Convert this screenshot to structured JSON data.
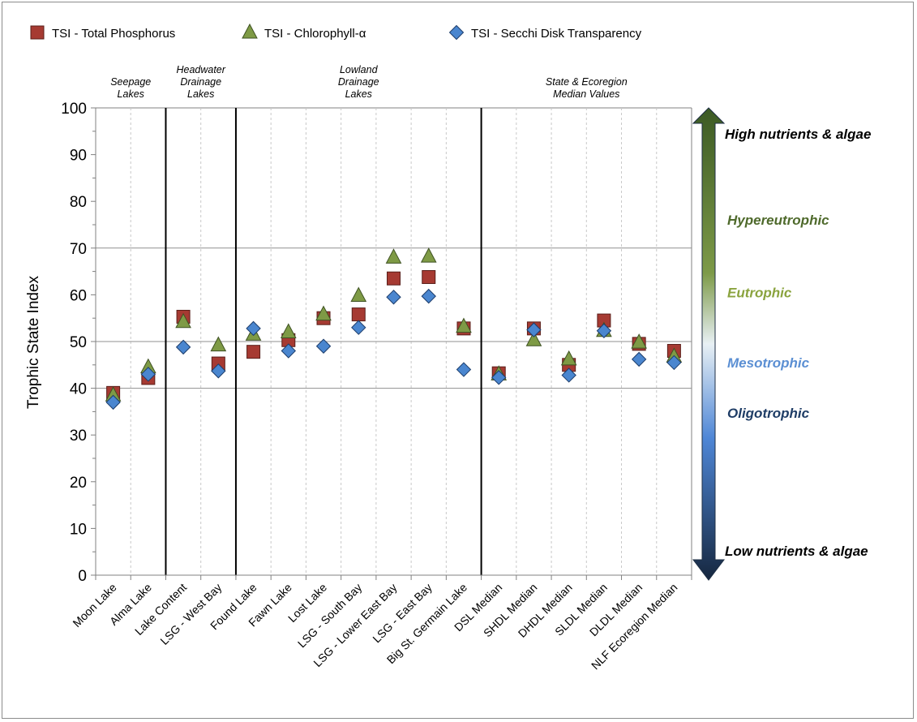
{
  "chart_data": {
    "type": "scatter",
    "ylabel": "Trophic State Index",
    "ylim": [
      0,
      100
    ],
    "yticks": [
      "0",
      "10",
      "20",
      "30",
      "40",
      "50",
      "60",
      "70",
      "80",
      "90",
      "100"
    ],
    "grid": "horizontal lines at 40, 50 and 70",
    "legend_position": "top-left",
    "categories": [
      "Moon Lake",
      "Alma Lake",
      "Lake Content",
      "LSG - West Bay",
      "Found Lake",
      "Fawn Lake",
      "Lost Lake",
      "LSG - South Bay",
      "LSG - Lower East Bay",
      "LSG - East Bay",
      "Big St. Germain Lake",
      "DSL Median",
      "SHDL Median",
      "DHDL Median",
      "SLDL Median",
      "DLDL Median",
      "NLF Ecoregion Median"
    ],
    "series": [
      {
        "name": "TSI - Total Phosphorus",
        "marker": "square",
        "color": "#a63a32",
        "values": [
          39,
          42.2,
          55.3,
          45.3,
          47.8,
          50.3,
          55.0,
          55.8,
          63.5,
          63.8,
          52.8,
          43.2,
          52.8,
          45.0,
          54.5,
          49.5,
          48.0
        ]
      },
      {
        "name": "TSI - Chlorophyll-α",
        "marker": "triangle",
        "color": "#7e9a45",
        "values": [
          38.5,
          44.5,
          54.2,
          49.2,
          51.5,
          52.0,
          55.8,
          59.8,
          68.0,
          68.2,
          53.2,
          43.0,
          50.3,
          46.2,
          52.3,
          49.8,
          46.8
        ]
      },
      {
        "name": "TSI - Secchi Disk Transparency",
        "marker": "diamond",
        "color": "#4a86cf",
        "values": [
          37.0,
          43.0,
          48.8,
          43.7,
          52.8,
          48.0,
          49.0,
          53.0,
          59.5,
          59.7,
          44.0,
          42.3,
          52.5,
          42.8,
          52.3,
          46.2,
          45.5
        ]
      }
    ],
    "group_dividers_after": [
      1,
      3,
      10
    ],
    "groups": [
      {
        "label": [
          "Seepage",
          "Lakes"
        ]
      },
      {
        "label": [
          "Headwater",
          "Drainage",
          "Lakes"
        ]
      },
      {
        "label": [
          "Lowland",
          "Drainage",
          "Lakes"
        ]
      },
      {
        "label": [
          "State & Ecoregion",
          "Median Values"
        ]
      }
    ],
    "trophic_scale": {
      "top": "High nutrients & algae",
      "bottom": "Low nutrients & algae",
      "labels": [
        {
          "text": "Hypereutrophic",
          "value": 76,
          "color": "#4f6a2c"
        },
        {
          "text": "Eutrophic",
          "value": 60.5,
          "color": "#8aa33e"
        },
        {
          "text": "Mesotrophic",
          "value": 45.5,
          "color": "#5b8fd3"
        },
        {
          "text": "Oligotrophic",
          "value": 34.7,
          "color": "#1f3d66"
        }
      ],
      "colors": {
        "top": "#3c5a24",
        "upper": "#7d9a48",
        "middle": "#e8f0f4",
        "lower": "#4e86d6",
        "bottom": "#16273f"
      }
    }
  }
}
